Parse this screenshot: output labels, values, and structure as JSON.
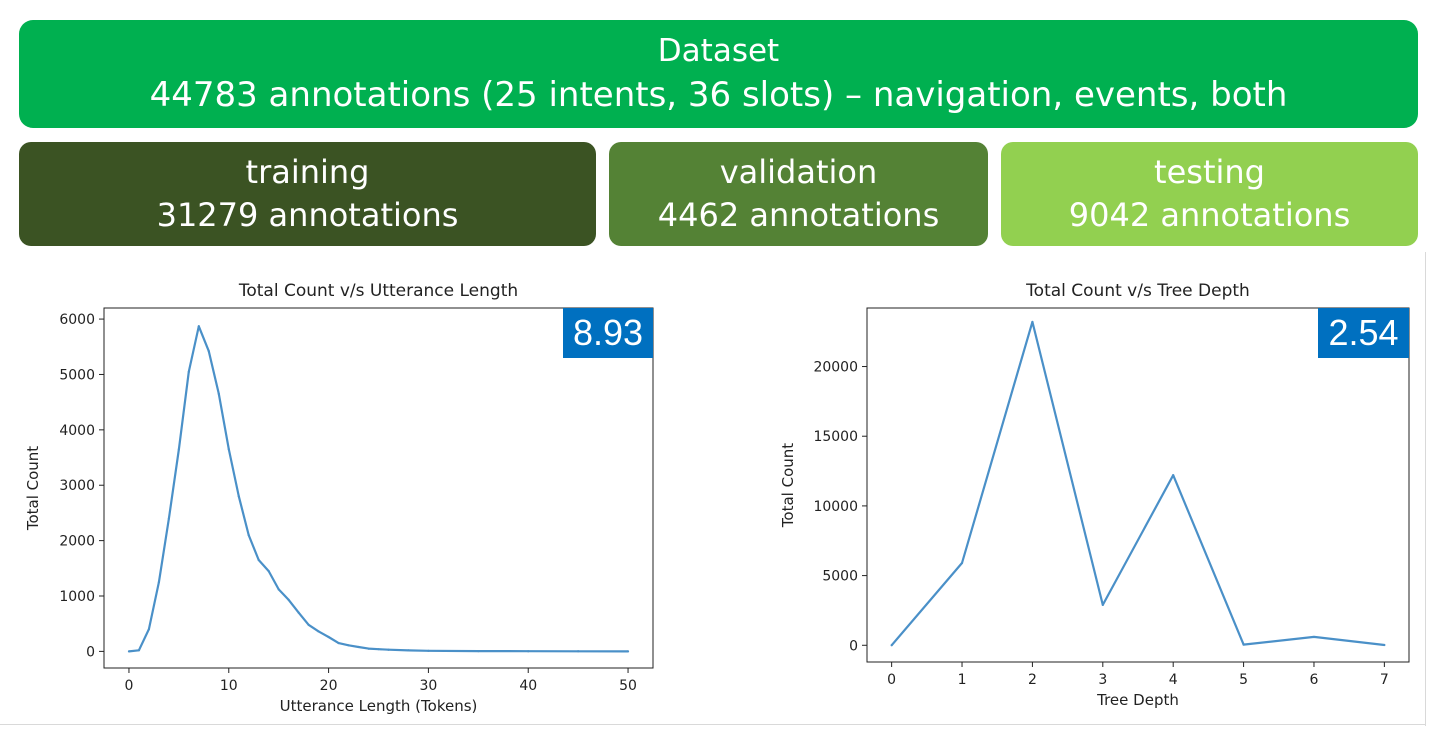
{
  "dataset": {
    "title": "Dataset",
    "summary": "44783 annotations (25 intents, 36 slots) – navigation, events, both",
    "color": "#00b050"
  },
  "splits": [
    {
      "name": "training",
      "count": "31279 annotations",
      "color": "#3b5323"
    },
    {
      "name": "validation",
      "count": "4462 annotations",
      "color": "#548235"
    },
    {
      "name": "testing",
      "count": "9042 annotations",
      "color": "#92d050"
    }
  ],
  "badge_color": "#0070c0",
  "line_color": "#4a90c8",
  "chart_data": [
    {
      "type": "line",
      "title": "Total Count v/s Utterance Length",
      "xlabel": "Utterance Length (Tokens)",
      "ylabel": "Total Count",
      "xlim": [
        -2.5,
        52.5
      ],
      "ylim": [
        -300,
        6200
      ],
      "xticks": [
        0,
        10,
        20,
        30,
        40,
        50
      ],
      "yticks": [
        0,
        1000,
        2000,
        3000,
        4000,
        5000,
        6000
      ],
      "badge": "8.93",
      "grid": false,
      "series": [
        {
          "x": [
            0,
            1,
            2,
            3,
            4,
            5,
            6,
            7,
            8,
            9,
            10,
            11,
            12,
            13,
            14,
            15,
            16,
            17,
            18,
            19,
            20,
            21,
            22,
            23,
            24,
            25,
            26,
            28,
            30,
            35,
            40,
            45,
            50
          ],
          "values": [
            0,
            20,
            400,
            1250,
            2400,
            3650,
            5050,
            5870,
            5420,
            4650,
            3650,
            2800,
            2100,
            1650,
            1450,
            1120,
            930,
            700,
            480,
            360,
            260,
            150,
            110,
            80,
            50,
            40,
            30,
            18,
            10,
            5,
            3,
            2,
            0
          ]
        }
      ]
    },
    {
      "type": "line",
      "title": "Total Count v/s Tree Depth",
      "xlabel": "Tree Depth",
      "ylabel": "Total Count",
      "xlim": [
        -0.35,
        7.35
      ],
      "ylim": [
        -1200,
        24200
      ],
      "xticks": [
        0,
        1,
        2,
        3,
        4,
        5,
        6,
        7
      ],
      "yticks": [
        0,
        5000,
        10000,
        15000,
        20000
      ],
      "badge": "2.54",
      "grid": false,
      "series": [
        {
          "x": [
            0,
            1,
            2,
            3,
            4,
            5,
            6,
            7
          ],
          "values": [
            0,
            5900,
            23200,
            2900,
            12200,
            50,
            600,
            20
          ]
        }
      ]
    }
  ]
}
